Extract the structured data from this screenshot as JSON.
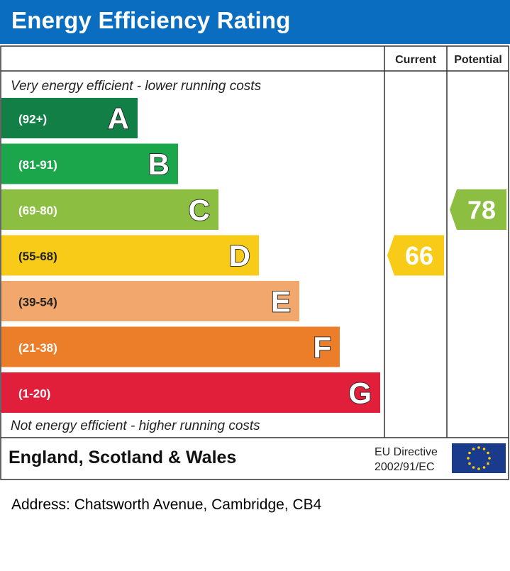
{
  "title": "Energy Efficiency Rating",
  "headers": {
    "current": "Current",
    "potential": "Potential"
  },
  "top_note": "Very energy efficient - lower running costs",
  "bottom_note": "Not energy efficient - higher running costs",
  "region": "England, Scotland & Wales",
  "directive": {
    "line1": "EU Directive",
    "line2": "2002/91/EC"
  },
  "address": "Address: Chatsworth Avenue, Cambridge, CB4",
  "chart_data": {
    "type": "bar",
    "bands": [
      {
        "letter": "A",
        "range": "(92+)",
        "color": "#127f47",
        "min": 92,
        "max": 100
      },
      {
        "letter": "B",
        "range": "(81-91)",
        "color": "#1ca64b",
        "min": 81,
        "max": 91
      },
      {
        "letter": "C",
        "range": "(69-80)",
        "color": "#8cbf41",
        "min": 69,
        "max": 80
      },
      {
        "letter": "D",
        "range": "(55-68)",
        "color": "#f7cb17",
        "min": 55,
        "max": 68
      },
      {
        "letter": "E",
        "range": "(39-54)",
        "color": "#f2a86c",
        "min": 39,
        "max": 54
      },
      {
        "letter": "F",
        "range": "(21-38)",
        "color": "#ec7e2a",
        "min": 21,
        "max": 38
      },
      {
        "letter": "G",
        "range": "(1-20)",
        "color": "#e21f3b",
        "min": 1,
        "max": 20
      }
    ],
    "current": {
      "value": 66,
      "band": "D",
      "color": "#f7cb17"
    },
    "potential": {
      "value": 78,
      "band": "C",
      "color": "#8cbf41"
    }
  }
}
